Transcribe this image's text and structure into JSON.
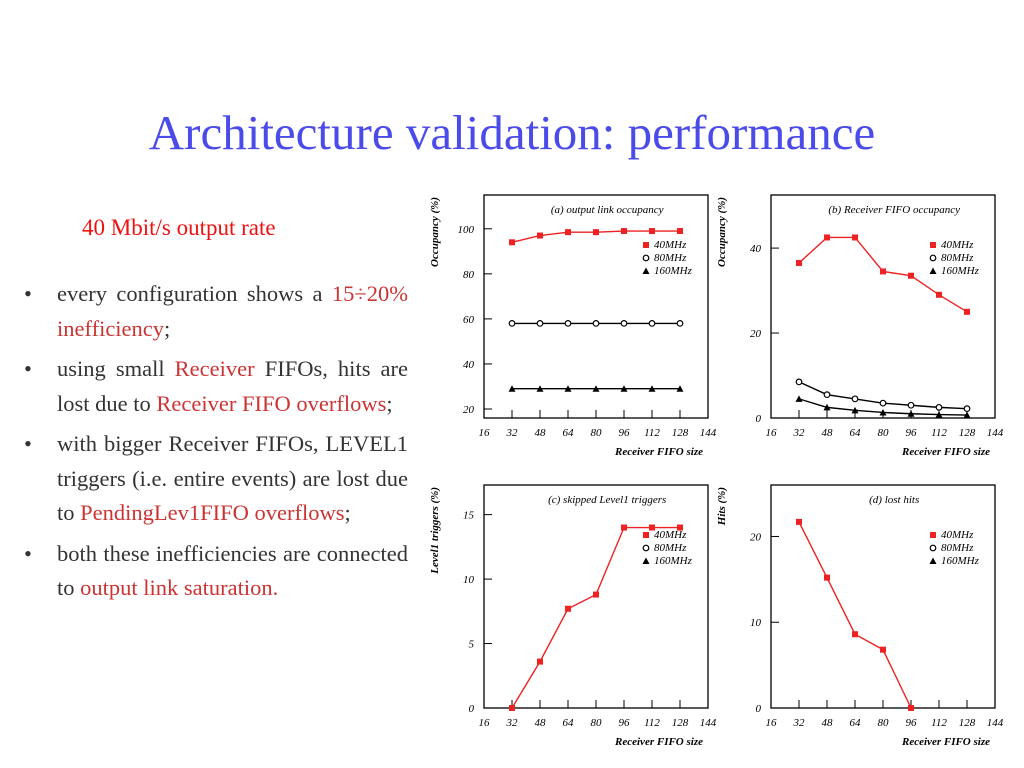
{
  "title": "Architecture validation: performance",
  "subtitle": "40 Mbit/s output rate",
  "bullets": [
    [
      {
        "text": "every configuration shows a ",
        "color": "#333333"
      },
      {
        "text": "15÷20% inefficiency",
        "color": "#cc3333"
      },
      {
        "text": ";",
        "color": "#333333"
      }
    ],
    [
      {
        "text": "using small ",
        "color": "#333333"
      },
      {
        "text": "Receiver",
        "color": "#cc3333"
      },
      {
        "text": " FIFOs, hits are lost due to ",
        "color": "#333333"
      },
      {
        "text": "Receiver FIFO overflows",
        "color": "#cc3333"
      },
      {
        "text": ";",
        "color": "#333333"
      }
    ],
    [
      {
        "text": "with bigger Receiver FIFOs, LEVEL1 triggers (i.e. entire events) are lost due to ",
        "color": "#333333"
      },
      {
        "text": "PendingLev1FIFO overflows",
        "color": "#cc3333"
      },
      {
        "text": ";",
        "color": "#333333"
      }
    ],
    [
      {
        "text": "both these inefficiencies are connected to ",
        "color": "#333333"
      },
      {
        "text": "output link saturation.",
        "color": "#cc3333"
      }
    ]
  ],
  "chart_data": [
    {
      "type": "line",
      "title": "(a) output link occupancy",
      "xlabel": "Receiver FIFO size",
      "ylabel": "Occupancy (%)",
      "x": [
        32,
        48,
        64,
        80,
        96,
        112,
        128
      ],
      "xlim": [
        16,
        144
      ],
      "xticks": [
        16,
        32,
        48,
        64,
        80,
        96,
        112,
        128,
        144
      ],
      "ylim": [
        16,
        115
      ],
      "yticks": [
        20,
        40,
        60,
        80,
        100
      ],
      "legend": "upper right",
      "series": [
        {
          "name": "40MHz",
          "color": "#ee2222",
          "marker": "square",
          "values": [
            94,
            97,
            98.5,
            98.5,
            99,
            99,
            99
          ]
        },
        {
          "name": "80MHz",
          "color": "#000000",
          "marker": "circle",
          "values": [
            58,
            58,
            58,
            58,
            58,
            58,
            58
          ]
        },
        {
          "name": "160MHz",
          "color": "#000000",
          "marker": "triangle",
          "values": [
            29,
            29,
            29,
            29,
            29,
            29,
            29
          ]
        }
      ]
    },
    {
      "type": "line",
      "title": "(b) Receiver FIFO occupancy",
      "xlabel": "Receiver FIFO size",
      "ylabel": "Occupancy (%)",
      "x": [
        32,
        48,
        64,
        80,
        96,
        112,
        128
      ],
      "xlim": [
        16,
        144
      ],
      "xticks": [
        16,
        32,
        48,
        64,
        80,
        96,
        112,
        128,
        144
      ],
      "ylim": [
        0,
        52.5
      ],
      "yticks": [
        0,
        20,
        40
      ],
      "legend": "upper right",
      "series": [
        {
          "name": "40MHz",
          "color": "#ee2222",
          "marker": "square",
          "values": [
            36.5,
            42.5,
            42.5,
            34.5,
            33.5,
            29,
            25
          ]
        },
        {
          "name": "80MHz",
          "color": "#000000",
          "marker": "circle",
          "values": [
            8.5,
            5.5,
            4.5,
            3.5,
            3,
            2.5,
            2.2
          ]
        },
        {
          "name": "160MHz",
          "color": "#000000",
          "marker": "triangle",
          "values": [
            4.5,
            2.5,
            1.8,
            1.3,
            1,
            0.8,
            0.7
          ]
        }
      ]
    },
    {
      "type": "line",
      "title": "(c) skipped Level1 triggers",
      "xlabel": "Receiver FIFO size",
      "ylabel": "Level1 triggers (%)",
      "x": [
        32,
        48,
        64,
        80,
        96,
        112,
        128
      ],
      "xlim": [
        16,
        144
      ],
      "xticks": [
        16,
        32,
        48,
        64,
        80,
        96,
        112,
        128,
        144
      ],
      "ylim": [
        0,
        17.3
      ],
      "yticks": [
        0,
        5,
        10,
        15
      ],
      "legend": "upper right",
      "series": [
        {
          "name": "40MHz",
          "color": "#ee2222",
          "marker": "square",
          "values": [
            0,
            3.6,
            7.7,
            8.8,
            14,
            14,
            14
          ]
        },
        {
          "name": "80MHz",
          "color": "#000000",
          "marker": "circle",
          "values": [
            null,
            null,
            null,
            null,
            null,
            null,
            null
          ]
        },
        {
          "name": "160MHz",
          "color": "#000000",
          "marker": "triangle",
          "values": [
            null,
            null,
            null,
            null,
            null,
            null,
            null
          ]
        }
      ]
    },
    {
      "type": "line",
      "title": "(d) lost hits",
      "xlabel": "Receiver FIFO size",
      "ylabel": "Hits (%)",
      "x": [
        32,
        48,
        64,
        80,
        96,
        112,
        128
      ],
      "xlim": [
        16,
        144
      ],
      "xticks": [
        16,
        32,
        48,
        64,
        80,
        96,
        112,
        128,
        144
      ],
      "ylim": [
        0,
        26
      ],
      "yticks": [
        0,
        10,
        20
      ],
      "legend": "upper right",
      "series": [
        {
          "name": "40MHz",
          "color": "#ee2222",
          "marker": "square",
          "values": [
            21.7,
            15.2,
            8.6,
            6.8,
            0,
            null,
            null
          ]
        },
        {
          "name": "80MHz",
          "color": "#000000",
          "marker": "circle",
          "values": [
            null,
            null,
            null,
            null,
            null,
            null,
            null
          ]
        },
        {
          "name": "160MHz",
          "color": "#000000",
          "marker": "triangle",
          "values": [
            null,
            null,
            null,
            null,
            null,
            null,
            null
          ]
        }
      ]
    }
  ]
}
